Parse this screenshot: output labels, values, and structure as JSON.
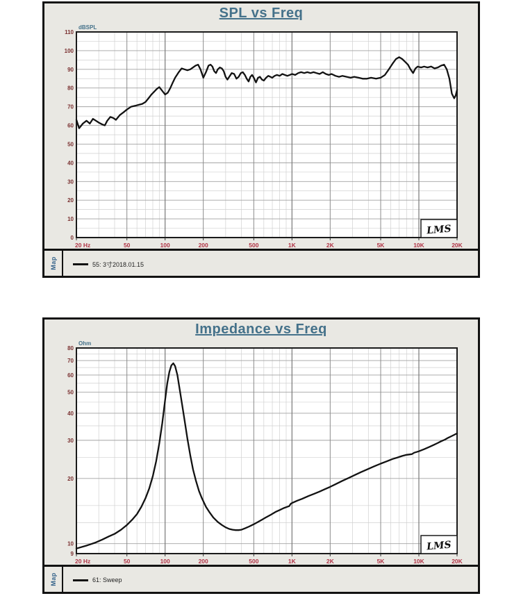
{
  "colors": {
    "title": "#44718a",
    "unit_label": "#44718a",
    "y_tick_label": "#7a3030",
    "x_tick_label": "#b03345",
    "grid_minor": "#d0d0d0",
    "grid_major": "#a2a2a2",
    "grid_labeled": "#8b8b8b",
    "grid_decade": "#787878",
    "plot_border": "#1a1a1a",
    "curve": "#121212",
    "panel_bg": "#e9e8e3",
    "plot_bg": "#ffffff",
    "map_label": "#36648b"
  },
  "panels": [
    {
      "title": "SPL vs Freq",
      "unit": "dBSPL",
      "map_label": "Map",
      "legend": "55: 3寸2018.01.15",
      "lms_logo": "LMS"
    },
    {
      "title": "Impedance vs Freq",
      "unit": "Ohm",
      "map_label": "Map",
      "legend": "61: Sweep",
      "lms_logo": "LMS"
    }
  ],
  "chart_data": [
    {
      "type": "line",
      "title": "SPL vs Freq",
      "ylabel": "dBSPL",
      "xlabel": "Hz",
      "x_scale": "log",
      "y_scale": "linear",
      "xlim": [
        20,
        20000
      ],
      "ylim": [
        0,
        110
      ],
      "y_ticks": [
        0,
        10,
        20,
        30,
        40,
        50,
        60,
        70,
        80,
        90,
        100,
        110
      ],
      "y_minor_step": 5,
      "x_ticks": [
        [
          20,
          "20 Hz"
        ],
        [
          50,
          "50"
        ],
        [
          100,
          "100"
        ],
        [
          200,
          "200"
        ],
        [
          500,
          "500"
        ],
        [
          1000,
          "1K"
        ],
        [
          2000,
          "2K"
        ],
        [
          5000,
          "5K"
        ],
        [
          10000,
          "10K"
        ],
        [
          20000,
          "20K"
        ]
      ],
      "x_minor": [
        30,
        40,
        60,
        70,
        80,
        90,
        300,
        400,
        600,
        700,
        800,
        900,
        3000,
        4000,
        6000,
        7000,
        8000,
        9000
      ],
      "grid": true,
      "legend_position": "bottom-left",
      "series": [
        {
          "name": "55: 3寸2018.01.15",
          "points": [
            [
              20,
              63
            ],
            [
              21,
              58.5
            ],
            [
              22.5,
              61
            ],
            [
              24,
              62.5
            ],
            [
              25.5,
              61
            ],
            [
              27,
              63.5
            ],
            [
              28.5,
              62.5
            ],
            [
              30,
              61.5
            ],
            [
              32,
              60.5
            ],
            [
              33.5,
              60
            ],
            [
              35,
              62.5
            ],
            [
              37,
              64.5
            ],
            [
              39,
              64
            ],
            [
              41,
              63
            ],
            [
              44,
              65.5
            ],
            [
              47,
              67
            ],
            [
              50,
              68.5
            ],
            [
              54,
              70
            ],
            [
              58,
              70.5
            ],
            [
              62,
              71
            ],
            [
              66,
              71.5
            ],
            [
              70,
              72.5
            ],
            [
              74,
              74.5
            ],
            [
              78,
              76.5
            ],
            [
              82,
              78
            ],
            [
              86,
              79.5
            ],
            [
              90,
              80.5
            ],
            [
              95,
              78.5
            ],
            [
              100,
              76.5
            ],
            [
              105,
              77.5
            ],
            [
              110,
              80
            ],
            [
              115,
              83
            ],
            [
              120,
              85.5
            ],
            [
              128,
              88.5
            ],
            [
              135,
              90.5
            ],
            [
              142,
              90
            ],
            [
              150,
              89.5
            ],
            [
              158,
              90
            ],
            [
              166,
              91
            ],
            [
              174,
              92
            ],
            [
              182,
              92.5
            ],
            [
              190,
              90
            ],
            [
              200,
              85.5
            ],
            [
              210,
              88.5
            ],
            [
              220,
              92
            ],
            [
              228,
              92.5
            ],
            [
              236,
              91.5
            ],
            [
              244,
              89
            ],
            [
              252,
              88
            ],
            [
              260,
              90
            ],
            [
              270,
              91
            ],
            [
              280,
              90.5
            ],
            [
              290,
              89
            ],
            [
              300,
              86
            ],
            [
              310,
              84.5
            ],
            [
              320,
              86
            ],
            [
              335,
              88
            ],
            [
              350,
              87.5
            ],
            [
              365,
              85
            ],
            [
              380,
              86
            ],
            [
              395,
              88
            ],
            [
              410,
              88.5
            ],
            [
              425,
              87
            ],
            [
              440,
              85
            ],
            [
              455,
              83.5
            ],
            [
              470,
              86
            ],
            [
              485,
              87
            ],
            [
              500,
              85.5
            ],
            [
              520,
              83
            ],
            [
              540,
              85.5
            ],
            [
              560,
              86
            ],
            [
              580,
              84.5
            ],
            [
              600,
              84
            ],
            [
              625,
              85.5
            ],
            [
              650,
              86.5
            ],
            [
              675,
              86
            ],
            [
              700,
              85.5
            ],
            [
              730,
              86.5
            ],
            [
              760,
              87
            ],
            [
              800,
              86.5
            ],
            [
              840,
              87.5
            ],
            [
              880,
              87
            ],
            [
              920,
              86.5
            ],
            [
              960,
              87
            ],
            [
              1000,
              87.5
            ],
            [
              1060,
              87
            ],
            [
              1120,
              88
            ],
            [
              1180,
              88.5
            ],
            [
              1250,
              88
            ],
            [
              1320,
              88.5
            ],
            [
              1400,
              88
            ],
            [
              1480,
              88.5
            ],
            [
              1560,
              88
            ],
            [
              1650,
              87.5
            ],
            [
              1750,
              88.5
            ],
            [
              1850,
              87.5
            ],
            [
              1950,
              87
            ],
            [
              2050,
              87.5
            ],
            [
              2200,
              86.5
            ],
            [
              2350,
              86
            ],
            [
              2500,
              86.5
            ],
            [
              2700,
              86
            ],
            [
              2900,
              85.5
            ],
            [
              3100,
              86
            ],
            [
              3350,
              85.5
            ],
            [
              3600,
              85
            ],
            [
              3900,
              85
            ],
            [
              4200,
              85.5
            ],
            [
              4600,
              85
            ],
            [
              5000,
              85.5
            ],
            [
              5400,
              87
            ],
            [
              5800,
              90
            ],
            [
              6200,
              93
            ],
            [
              6600,
              95.5
            ],
            [
              7000,
              96.5
            ],
            [
              7400,
              95.5
            ],
            [
              7800,
              94
            ],
            [
              8200,
              92.5
            ],
            [
              8600,
              90
            ],
            [
              9000,
              88
            ],
            [
              9400,
              90.5
            ],
            [
              9800,
              91.5
            ],
            [
              10400,
              91
            ],
            [
              11000,
              91.5
            ],
            [
              11700,
              91
            ],
            [
              12500,
              91.5
            ],
            [
              13300,
              90.5
            ],
            [
              14100,
              91
            ],
            [
              15000,
              92
            ],
            [
              15800,
              92.5
            ],
            [
              16600,
              90
            ],
            [
              17400,
              85
            ],
            [
              18200,
              77
            ],
            [
              19000,
              74.5
            ],
            [
              19500,
              76
            ],
            [
              20000,
              79
            ]
          ]
        }
      ]
    },
    {
      "type": "line",
      "title": "Impedance vs Freq",
      "ylabel": "Ohm",
      "xlabel": "Hz",
      "x_scale": "log",
      "y_scale": "log",
      "xlim": [
        20,
        20000
      ],
      "ylim": [
        9,
        80
      ],
      "y_ticks": [
        9,
        10,
        20,
        30,
        40,
        50,
        60,
        70,
        80
      ],
      "y_minor": [
        12.5,
        15,
        25,
        35,
        45,
        55,
        65,
        75
      ],
      "x_ticks": [
        [
          20,
          "20 Hz"
        ],
        [
          50,
          "50"
        ],
        [
          100,
          "100"
        ],
        [
          200,
          "200"
        ],
        [
          500,
          "500"
        ],
        [
          1000,
          "1K"
        ],
        [
          2000,
          "2K"
        ],
        [
          5000,
          "5K"
        ],
        [
          10000,
          "10K"
        ],
        [
          20000,
          "20K"
        ]
      ],
      "x_minor": [
        30,
        40,
        60,
        70,
        80,
        90,
        300,
        400,
        600,
        700,
        800,
        900,
        3000,
        4000,
        6000,
        7000,
        8000,
        9000
      ],
      "grid": true,
      "legend_position": "bottom-left",
      "series": [
        {
          "name": "61: Sweep",
          "points": [
            [
              20,
              9.5
            ],
            [
              24,
              9.8
            ],
            [
              28,
              10.1
            ],
            [
              32,
              10.45
            ],
            [
              36,
              10.8
            ],
            [
              40,
              11.1
            ],
            [
              45,
              11.6
            ],
            [
              50,
              12.2
            ],
            [
              55,
              12.9
            ],
            [
              60,
              13.7
            ],
            [
              65,
              14.8
            ],
            [
              70,
              16.2
            ],
            [
              75,
              18
            ],
            [
              80,
              20.5
            ],
            [
              85,
              24
            ],
            [
              90,
              29
            ],
            [
              95,
              36
            ],
            [
              100,
              46
            ],
            [
              104,
              55
            ],
            [
              108,
              62
            ],
            [
              112,
              66.5
            ],
            [
              116,
              68
            ],
            [
              120,
              66
            ],
            [
              125,
              60
            ],
            [
              130,
              52
            ],
            [
              136,
              44
            ],
            [
              142,
              37.5
            ],
            [
              150,
              30.5
            ],
            [
              158,
              25.5
            ],
            [
              166,
              22
            ],
            [
              175,
              19.5
            ],
            [
              185,
              17.5
            ],
            [
              195,
              16.2
            ],
            [
              210,
              14.8
            ],
            [
              225,
              13.9
            ],
            [
              240,
              13.2
            ],
            [
              260,
              12.6
            ],
            [
              280,
              12.2
            ],
            [
              300,
              11.9
            ],
            [
              320,
              11.7
            ],
            [
              340,
              11.6
            ],
            [
              360,
              11.55
            ],
            [
              380,
              11.55
            ],
            [
              400,
              11.6
            ],
            [
              430,
              11.8
            ],
            [
              460,
              12
            ],
            [
              500,
              12.3
            ],
            [
              540,
              12.6
            ],
            [
              580,
              12.9
            ],
            [
              620,
              13.2
            ],
            [
              680,
              13.6
            ],
            [
              740,
              14
            ],
            [
              800,
              14.3
            ],
            [
              860,
              14.6
            ],
            [
              920,
              14.8
            ],
            [
              950,
              14.9
            ],
            [
              980,
              15.3
            ],
            [
              1000,
              15.4
            ],
            [
              1100,
              15.8
            ],
            [
              1200,
              16.1
            ],
            [
              1350,
              16.6
            ],
            [
              1500,
              17
            ],
            [
              1650,
              17.4
            ],
            [
              1800,
              17.8
            ],
            [
              2000,
              18.3
            ],
            [
              2200,
              18.8
            ],
            [
              2500,
              19.5
            ],
            [
              2800,
              20.1
            ],
            [
              3100,
              20.7
            ],
            [
              3500,
              21.4
            ],
            [
              3900,
              22
            ],
            [
              4400,
              22.7
            ],
            [
              5000,
              23.4
            ],
            [
              5600,
              24
            ],
            [
              6200,
              24.6
            ],
            [
              6800,
              25
            ],
            [
              7400,
              25.4
            ],
            [
              8000,
              25.7
            ],
            [
              8400,
              25.8
            ],
            [
              8800,
              25.9
            ],
            [
              9200,
              26.3
            ],
            [
              9600,
              26.5
            ],
            [
              10000,
              26.7
            ],
            [
              11000,
              27.3
            ],
            [
              12000,
              27.9
            ],
            [
              13000,
              28.5
            ],
            [
              14000,
              29.1
            ],
            [
              15000,
              29.7
            ],
            [
              16000,
              30.2
            ],
            [
              17000,
              30.8
            ],
            [
              18000,
              31.3
            ],
            [
              19000,
              31.8
            ],
            [
              20000,
              32.3
            ]
          ]
        }
      ]
    }
  ]
}
